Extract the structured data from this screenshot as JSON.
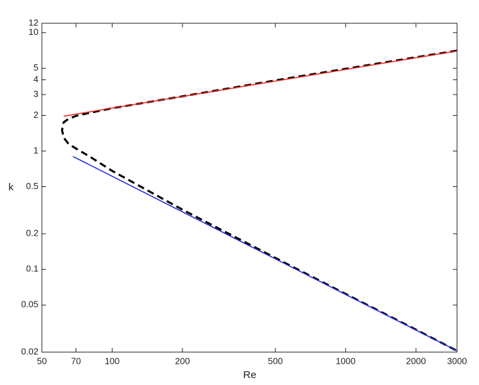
{
  "chart_data": {
    "type": "line",
    "x_label": "Re",
    "y_label": "k",
    "xscale": "log",
    "yscale": "log",
    "xlim": [
      50,
      3000
    ],
    "xticks": [
      50,
      70,
      100,
      200,
      500,
      1000,
      2000,
      3000
    ],
    "ylim": [
      0.02,
      12
    ],
    "yticks": [
      0.02,
      0.05,
      0.1,
      0.2,
      0.5,
      1,
      2,
      3,
      4,
      5,
      10,
      12
    ],
    "series": [
      {
        "color": "#000000",
        "line_style": "dashed",
        "x": [
          3000,
          2000,
          1000,
          500,
          200,
          100,
          80,
          70,
          65,
          62,
          61,
          62,
          65,
          70,
          80,
          100,
          200,
          500,
          1000,
          2000,
          3000
        ],
        "values": [
          7.05,
          6.2,
          4.95,
          3.95,
          2.9,
          2.3,
          2.1,
          1.98,
          1.87,
          1.75,
          1.5,
          1.3,
          1.15,
          1.05,
          0.9,
          0.68,
          0.32,
          0.125,
          0.062,
          0.031,
          0.0205
        ]
      },
      {
        "color": "#e8221b",
        "line_style": "solid",
        "x": [
          62,
          3000
        ],
        "values": [
          1.97,
          7.0
        ]
      },
      {
        "color": "#1f2bd0",
        "line_style": "solid",
        "x": [
          68,
          3000
        ],
        "values": [
          0.9,
          0.0205
        ]
      }
    ]
  }
}
